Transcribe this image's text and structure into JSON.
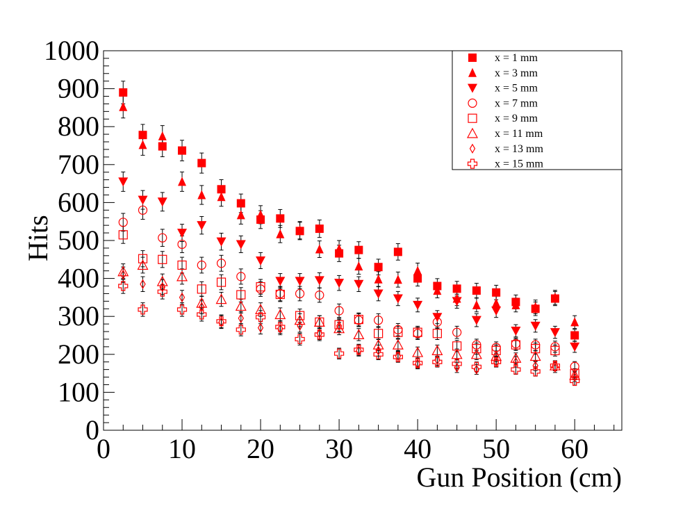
{
  "chart_data": {
    "type": "scatter",
    "xlabel": "Gun Position (cm)",
    "ylabel": "Hits",
    "xlim": [
      0,
      66
    ],
    "ylim": [
      0,
      1000
    ],
    "xticks": [
      "0",
      "10",
      "20",
      "30",
      "40",
      "50",
      "60"
    ],
    "yticks": [
      "0",
      "100",
      "200",
      "300",
      "400",
      "500",
      "600",
      "700",
      "800",
      "900",
      "1000"
    ],
    "grid": false,
    "legend_position": "top-right",
    "error_bars": true,
    "marker_color": "#ff0000",
    "x": [
      2.5,
      5,
      7.5,
      10,
      12.5,
      15,
      17.5,
      20,
      22.5,
      25,
      27.5,
      30,
      32.5,
      35,
      37.5,
      40,
      42.5,
      45,
      47.5,
      50,
      52.5,
      55,
      57.5,
      60
    ],
    "series": [
      {
        "name": "x = 1 mm",
        "marker": "square-filled",
        "values": [
          890,
          778,
          748,
          737,
          704,
          635,
          598,
          555,
          558,
          525,
          531,
          466,
          475,
          430,
          470,
          400,
          380,
          373,
          368,
          363,
          338,
          320,
          347,
          250
        ]
      },
      {
        "name": "x = 3 mm",
        "marker": "triangle-up-filled",
        "values": [
          852,
          752,
          775,
          655,
          620,
          615,
          567,
          568,
          517,
          527,
          477,
          478,
          432,
          398,
          397,
          420,
          368,
          347,
          330,
          335,
          330,
          325,
          350,
          285
        ]
      },
      {
        "name": "x = 5 mm",
        "marker": "triangle-down-filled",
        "values": [
          655,
          607,
          602,
          520,
          540,
          497,
          490,
          447,
          393,
          393,
          395,
          388,
          385,
          360,
          347,
          330,
          298,
          340,
          290,
          315,
          262,
          275,
          258,
          220
        ]
      },
      {
        "name": "x = 7 mm",
        "marker": "circle-open",
        "values": [
          548,
          580,
          507,
          490,
          435,
          440,
          405,
          372,
          360,
          360,
          356,
          315,
          290,
          290,
          265,
          255,
          285,
          258,
          225,
          218,
          228,
          225,
          220,
          168
        ]
      },
      {
        "name": "x = 9 mm",
        "marker": "square-open",
        "values": [
          515,
          452,
          450,
          435,
          372,
          390,
          357,
          378,
          358,
          302,
          285,
          278,
          292,
          255,
          258,
          258,
          255,
          222,
          215,
          210,
          225,
          215,
          210,
          150
        ]
      },
      {
        "name": "x = 11 mm",
        "marker": "triangle-up-open",
        "values": [
          418,
          435,
          392,
          405,
          335,
          345,
          327,
          318,
          305,
          290,
          285,
          268,
          252,
          225,
          225,
          205,
          210,
          200,
          200,
          195,
          190,
          195,
          170,
          145
        ]
      },
      {
        "name": "x = 13 mm",
        "marker": "diamond-open",
        "values": [
          410,
          385,
          377,
          350,
          325,
          285,
          295,
          270,
          268,
          275,
          255,
          275,
          210,
          210,
          195,
          175,
          185,
          165,
          160,
          180,
          180,
          170,
          165,
          140
        ]
      },
      {
        "name": "x = 15 mm",
        "marker": "cross-open",
        "values": [
          380,
          318,
          365,
          318,
          305,
          287,
          265,
          298,
          272,
          240,
          252,
          202,
          212,
          200,
          193,
          177,
          180,
          175,
          167,
          180,
          160,
          155,
          170,
          130
        ]
      }
    ]
  }
}
